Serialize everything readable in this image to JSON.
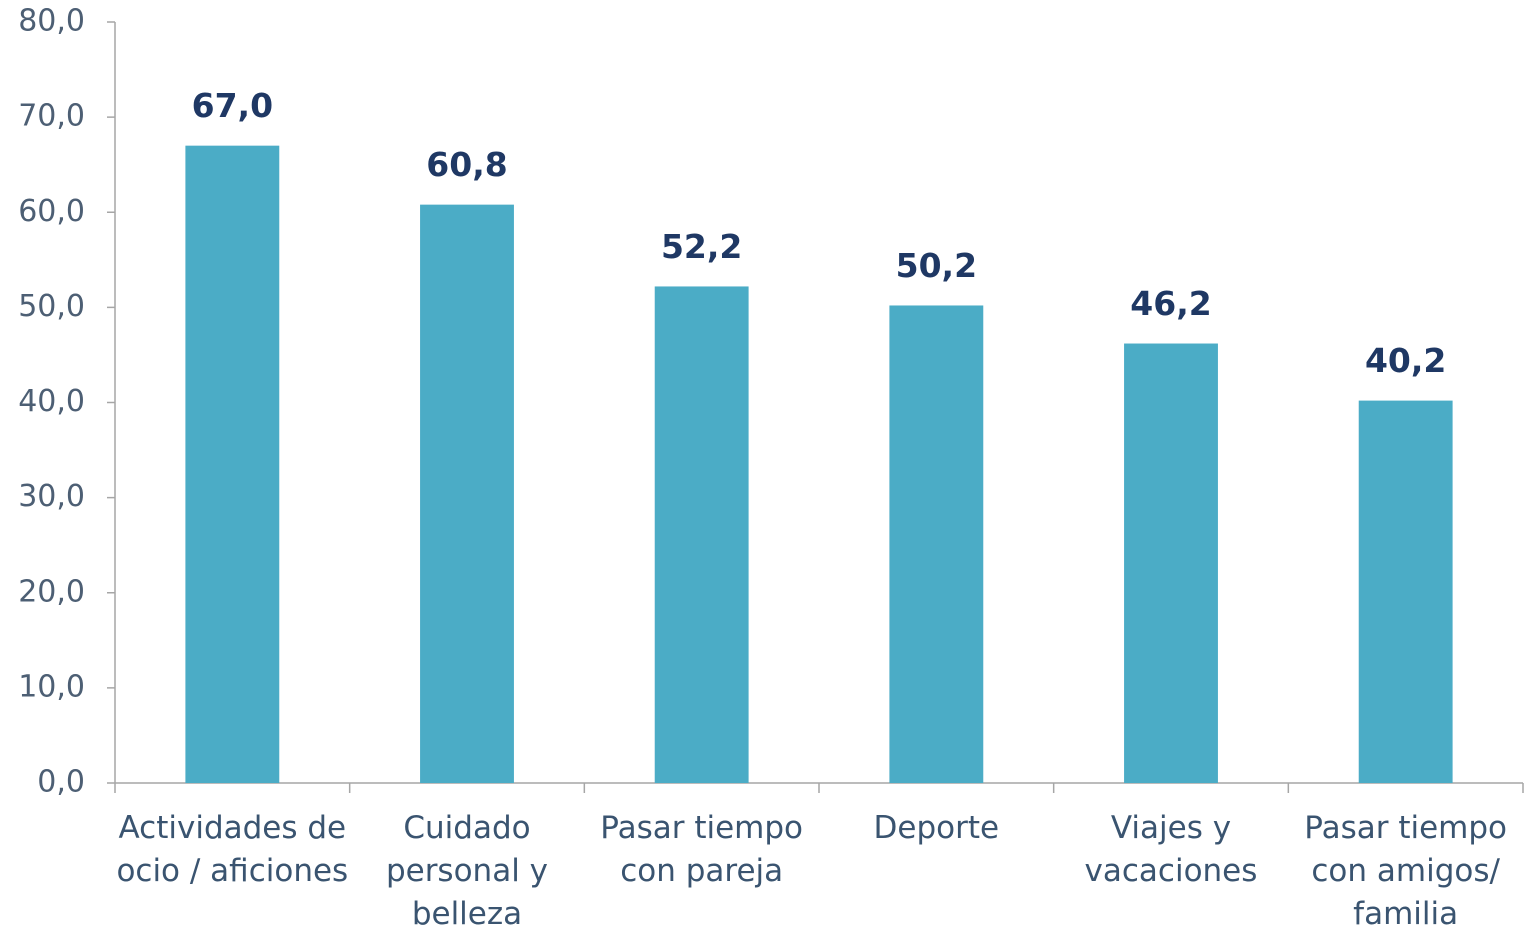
{
  "chart_data": {
    "type": "bar",
    "categories": [
      "Actividades de ocio / aficiones",
      "Cuidado personal y belleza",
      "Pasar tiempo con pareja",
      "Deporte",
      "Viajes y vacaciones",
      "Pasar tiempo con amigos/ familia"
    ],
    "values": [
      67.0,
      60.8,
      52.2,
      50.2,
      46.2,
      40.2
    ],
    "value_labels": [
      "67,0",
      "60,8",
      "52,2",
      "50,2",
      "46,2",
      "40,2"
    ],
    "color": "#4bacc6",
    "ylim": [
      0,
      80
    ],
    "yticks": [
      {
        "value": 0,
        "label": "0,0"
      },
      {
        "value": 10,
        "label": "10,0"
      },
      {
        "value": 20,
        "label": "20,0"
      },
      {
        "value": 30,
        "label": "30,0"
      },
      {
        "value": 40,
        "label": "40,0"
      },
      {
        "value": 50,
        "label": "50,0"
      },
      {
        "value": 60,
        "label": "60,0"
      },
      {
        "value": 70,
        "label": "70,0"
      },
      {
        "value": 80,
        "label": "80,0"
      }
    ],
    "grid": false
  }
}
